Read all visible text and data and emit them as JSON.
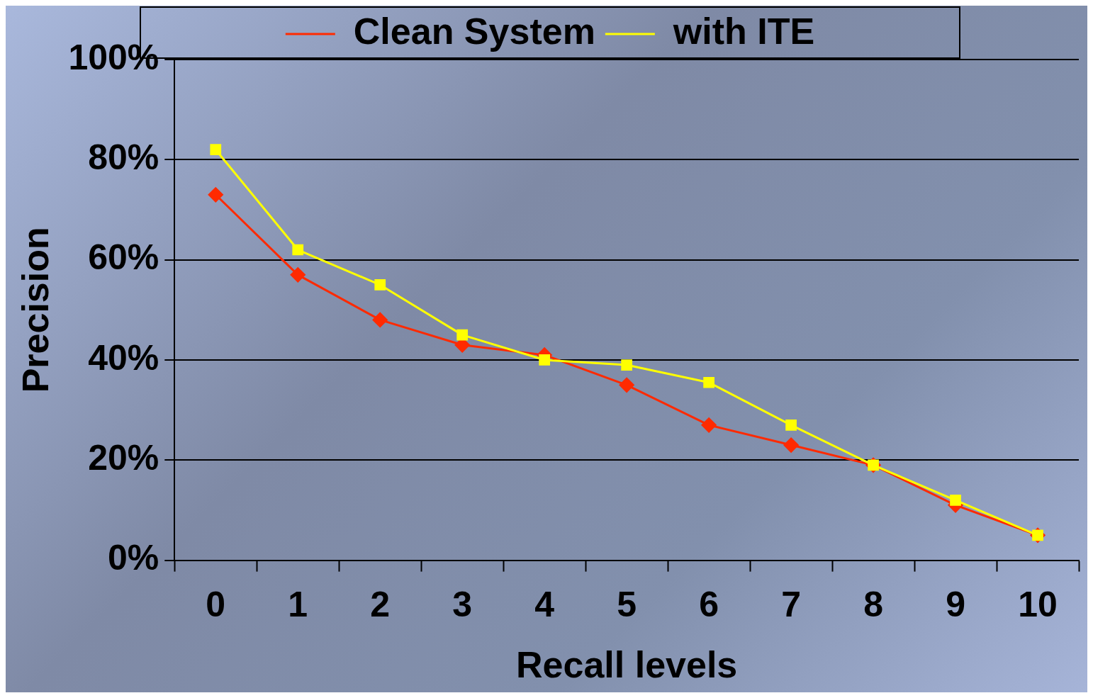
{
  "chart_data": {
    "type": "line",
    "xlabel": "Recall levels",
    "ylabel": "Precision",
    "categories": [
      "0",
      "1",
      "2",
      "3",
      "4",
      "5",
      "6",
      "7",
      "8",
      "9",
      "10"
    ],
    "series": [
      {
        "name": "Clean System",
        "color": "#ff2a00",
        "marker": "diamond",
        "values": [
          73,
          57,
          48,
          43,
          41,
          35,
          27,
          23,
          19,
          11,
          5
        ]
      },
      {
        "name": "with ITE",
        "color": "#ffff00",
        "marker": "square",
        "values": [
          82,
          62,
          55,
          45,
          40,
          39,
          35.5,
          27,
          19,
          12,
          5
        ]
      }
    ],
    "ylim": [
      0,
      100
    ],
    "yticks": [
      {
        "value": 0,
        "label": "0%"
      },
      {
        "value": 20,
        "label": "20%"
      },
      {
        "value": 40,
        "label": "40%"
      },
      {
        "value": 60,
        "label": "60%"
      },
      {
        "value": 80,
        "label": "80%"
      },
      {
        "value": 100,
        "label": "100%"
      }
    ],
    "grid": "y",
    "legend": "top",
    "line_style": "solid"
  }
}
